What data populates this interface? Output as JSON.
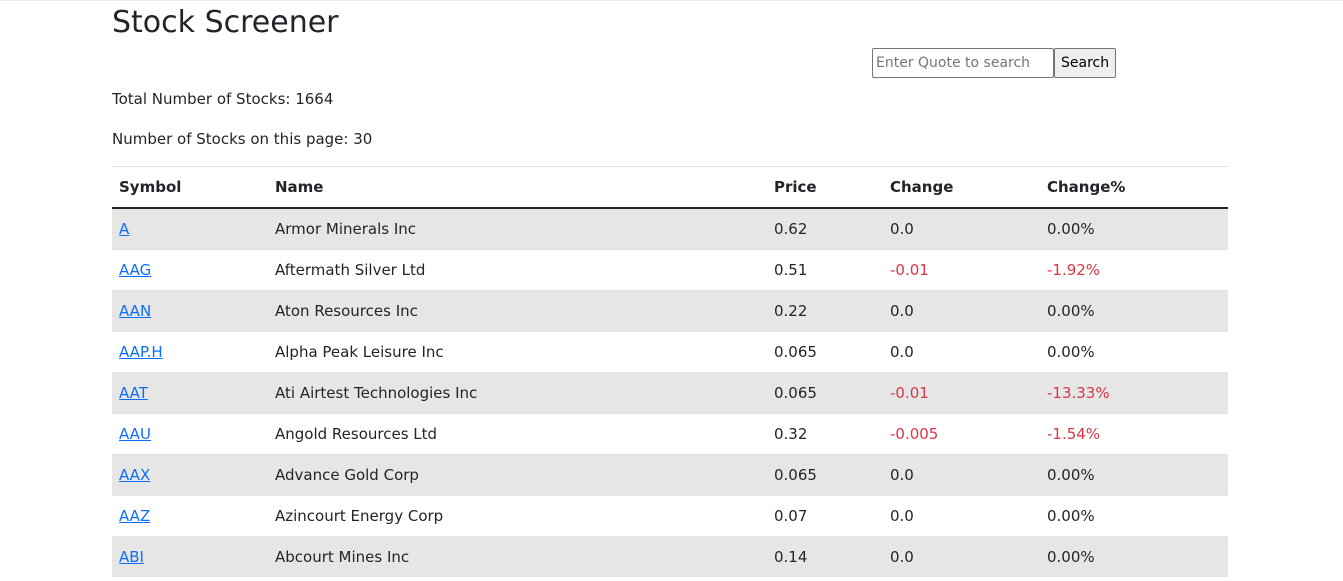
{
  "page": {
    "title": "Stock Screener"
  },
  "search": {
    "placeholder": "Enter Quote to search",
    "value": "",
    "button_label": "Search"
  },
  "stats": {
    "total_label": "Total Number of Stocks: 1664",
    "page_label": "Number of Stocks on this page: 30"
  },
  "table": {
    "headers": {
      "symbol": "Symbol",
      "name": "Name",
      "price": "Price",
      "change": "Change",
      "change_pct": "Change%"
    },
    "rows": [
      {
        "symbol": "A",
        "name": "Armor Minerals Inc",
        "price": "0.62",
        "change": "0.0",
        "change_pct": "0.00%",
        "negative": false
      },
      {
        "symbol": "AAG",
        "name": "Aftermath Silver Ltd",
        "price": "0.51",
        "change": "-0.01",
        "change_pct": "-1.92%",
        "negative": true
      },
      {
        "symbol": "AAN",
        "name": "Aton Resources Inc",
        "price": "0.22",
        "change": "0.0",
        "change_pct": "0.00%",
        "negative": false
      },
      {
        "symbol": "AAP.H",
        "name": "Alpha Peak Leisure Inc",
        "price": "0.065",
        "change": "0.0",
        "change_pct": "0.00%",
        "negative": false
      },
      {
        "symbol": "AAT",
        "name": "Ati Airtest Technologies Inc",
        "price": "0.065",
        "change": "-0.01",
        "change_pct": "-13.33%",
        "negative": true
      },
      {
        "symbol": "AAU",
        "name": "Angold Resources Ltd",
        "price": "0.32",
        "change": "-0.005",
        "change_pct": "-1.54%",
        "negative": true
      },
      {
        "symbol": "AAX",
        "name": "Advance Gold Corp",
        "price": "0.065",
        "change": "0.0",
        "change_pct": "0.00%",
        "negative": false
      },
      {
        "symbol": "AAZ",
        "name": "Azincourt Energy Corp",
        "price": "0.07",
        "change": "0.0",
        "change_pct": "0.00%",
        "negative": false
      },
      {
        "symbol": "ABI",
        "name": "Abcourt Mines Inc",
        "price": "0.14",
        "change": "0.0",
        "change_pct": "0.00%",
        "negative": false
      }
    ]
  },
  "colors": {
    "link": "#0d6efd",
    "negative": "#dc3545",
    "stripe": "#e6e6e6"
  }
}
